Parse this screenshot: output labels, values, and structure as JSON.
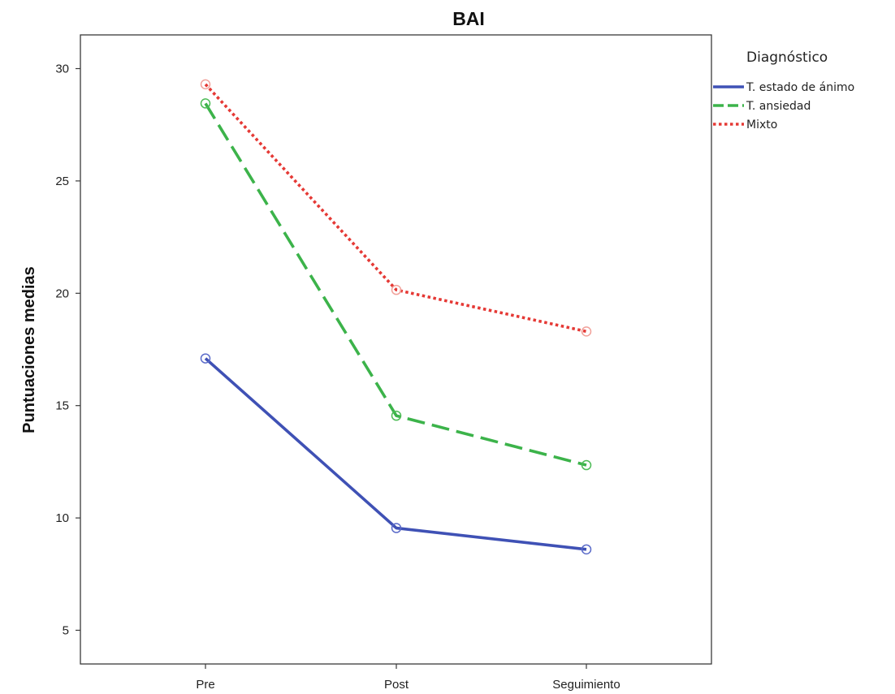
{
  "chart_data": {
    "type": "line",
    "title": "BAI",
    "xlabel": "",
    "ylabel": "Puntuaciones medias",
    "categories": [
      "Pre",
      "Post",
      "Seguimiento"
    ],
    "ylim": [
      3.5,
      31.5
    ],
    "yticks": [
      5,
      10,
      15,
      20,
      25,
      30
    ],
    "grid": false,
    "legend": {
      "title": "Diagnóstico",
      "placement": "right-top"
    },
    "series": [
      {
        "name": "T. estado de ánimo",
        "values": [
          17.1,
          9.55,
          8.6
        ],
        "color": "#3f51b5",
        "marker_color": "#5b6bc9",
        "style": "solid"
      },
      {
        "name": "T. ansiedad",
        "values": [
          28.45,
          14.55,
          12.35
        ],
        "color": "#3cb34a",
        "marker_color": "#4cbb55",
        "style": "dashed"
      },
      {
        "name": "Mixto",
        "values": [
          29.3,
          20.15,
          18.3
        ],
        "color": "#e53935",
        "marker_color": "#f1a19a",
        "style": "dotted"
      }
    ]
  }
}
